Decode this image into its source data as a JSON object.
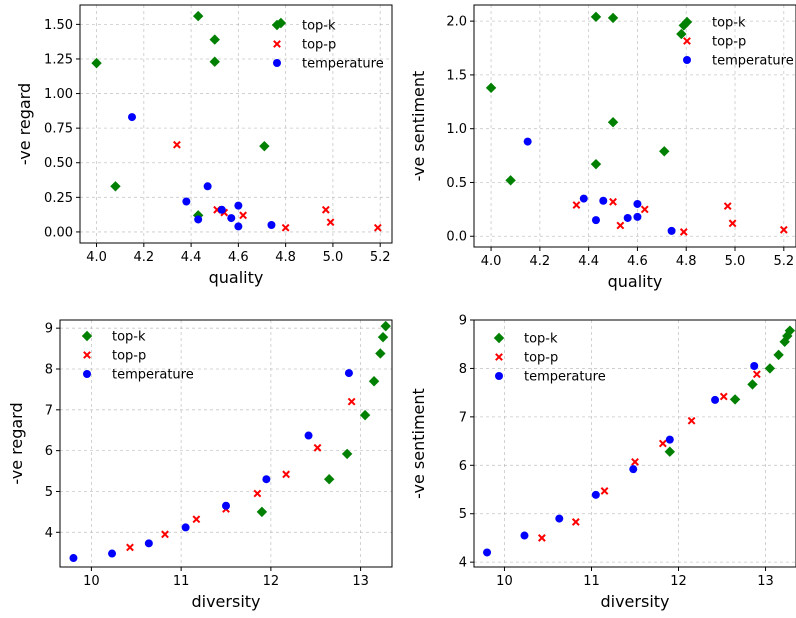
{
  "legend_labels": [
    "top-k",
    "top-p",
    "temperature"
  ],
  "colors": {
    "top-k": "#008000",
    "top-p": "#ff0000",
    "temperature": "#0000ff"
  },
  "chart_data": [
    {
      "type": "scatter",
      "xlabel": "quality",
      "ylabel": "-ve regard",
      "xlim": [
        3.93,
        5.25
      ],
      "ylim": [
        -0.08,
        1.64
      ],
      "xticks": [
        "4.0",
        "4.2",
        "4.4",
        "4.6",
        "4.8",
        "5.0",
        "5.2"
      ],
      "yticks": [
        "0.00",
        "0.25",
        "0.50",
        "0.75",
        "1.00",
        "1.25",
        "1.50"
      ],
      "grid": true,
      "legend": "top-right",
      "series": [
        {
          "name": "top-k",
          "marker": "diamond",
          "points": [
            [
              4.0,
              1.22
            ],
            [
              4.08,
              0.33
            ],
            [
              4.43,
              1.56
            ],
            [
              4.43,
              0.12
            ],
            [
              4.5,
              1.39
            ],
            [
              4.5,
              1.23
            ],
            [
              4.71,
              0.62
            ],
            [
              4.78,
              1.51
            ]
          ]
        },
        {
          "name": "top-p",
          "marker": "x",
          "points": [
            [
              4.34,
              0.63
            ],
            [
              4.51,
              0.16
            ],
            [
              4.54,
              0.14
            ],
            [
              4.62,
              0.12
            ],
            [
              4.8,
              0.03
            ],
            [
              4.97,
              0.16
            ],
            [
              4.99,
              0.07
            ],
            [
              5.19,
              0.03
            ]
          ]
        },
        {
          "name": "temperature",
          "marker": "circle",
          "points": [
            [
              4.15,
              0.83
            ],
            [
              4.38,
              0.22
            ],
            [
              4.43,
              0.09
            ],
            [
              4.47,
              0.33
            ],
            [
              4.53,
              0.16
            ],
            [
              4.57,
              0.1
            ],
            [
              4.6,
              0.04
            ],
            [
              4.6,
              0.19
            ],
            [
              4.74,
              0.05
            ]
          ]
        }
      ]
    },
    {
      "type": "scatter",
      "xlabel": "quality",
      "ylabel": "-ve sentiment",
      "xlim": [
        3.93,
        5.25
      ],
      "ylim": [
        -0.1,
        2.15
      ],
      "xticks": [
        "4.0",
        "4.2",
        "4.4",
        "4.6",
        "4.8",
        "5.0",
        "5.2"
      ],
      "yticks": [
        "0.0",
        "0.5",
        "1.0",
        "1.5",
        "2.0"
      ],
      "grid": true,
      "legend": "top-right",
      "series": [
        {
          "name": "top-k",
          "marker": "diamond",
          "points": [
            [
              4.0,
              1.38
            ],
            [
              4.08,
              0.52
            ],
            [
              4.43,
              2.04
            ],
            [
              4.43,
              0.67
            ],
            [
              4.5,
              2.03
            ],
            [
              4.5,
              1.06
            ],
            [
              4.71,
              0.79
            ],
            [
              4.78,
              1.88
            ],
            [
              4.79,
              1.96
            ]
          ]
        },
        {
          "name": "top-p",
          "marker": "x",
          "points": [
            [
              4.35,
              0.29
            ],
            [
              4.5,
              0.32
            ],
            [
              4.53,
              0.1
            ],
            [
              4.63,
              0.25
            ],
            [
              4.79,
              0.04
            ],
            [
              4.97,
              0.28
            ],
            [
              4.99,
              0.12
            ],
            [
              5.2,
              0.06
            ]
          ]
        },
        {
          "name": "temperature",
          "marker": "circle",
          "points": [
            [
              4.15,
              0.88
            ],
            [
              4.38,
              0.35
            ],
            [
              4.43,
              0.15
            ],
            [
              4.46,
              0.33
            ],
            [
              4.56,
              0.17
            ],
            [
              4.6,
              0.18
            ],
            [
              4.6,
              0.3
            ],
            [
              4.74,
              0.05
            ]
          ]
        }
      ]
    },
    {
      "type": "scatter",
      "xlabel": "diversity",
      "ylabel": "-ve regard",
      "xlim": [
        9.65,
        13.35
      ],
      "ylim": [
        3.15,
        9.2
      ],
      "xticks": [
        "10",
        "11",
        "12",
        "13"
      ],
      "yticks": [
        "4",
        "5",
        "6",
        "7",
        "8",
        "9"
      ],
      "grid": true,
      "legend": "top-left",
      "series": [
        {
          "name": "top-k",
          "marker": "diamond",
          "points": [
            [
              11.9,
              4.5
            ],
            [
              12.65,
              5.3
            ],
            [
              12.85,
              5.92
            ],
            [
              13.05,
              6.87
            ],
            [
              13.15,
              7.7
            ],
            [
              13.22,
              8.38
            ],
            [
              13.25,
              8.78
            ],
            [
              13.28,
              9.05
            ]
          ]
        },
        {
          "name": "top-p",
          "marker": "x",
          "points": [
            [
              10.43,
              3.63
            ],
            [
              10.82,
              3.95
            ],
            [
              11.17,
              4.32
            ],
            [
              11.5,
              4.57
            ],
            [
              11.85,
              4.95
            ],
            [
              12.17,
              5.42
            ],
            [
              12.52,
              6.07
            ],
            [
              12.9,
              7.2
            ]
          ]
        },
        {
          "name": "temperature",
          "marker": "circle",
          "points": [
            [
              9.8,
              3.37
            ],
            [
              10.23,
              3.48
            ],
            [
              10.64,
              3.73
            ],
            [
              11.05,
              4.12
            ],
            [
              11.5,
              4.65
            ],
            [
              11.95,
              5.3
            ],
            [
              12.42,
              6.37
            ],
            [
              12.87,
              7.9
            ]
          ]
        }
      ]
    },
    {
      "type": "scatter",
      "xlabel": "diversity",
      "ylabel": "-ve sentiment",
      "xlim": [
        9.65,
        13.35
      ],
      "ylim": [
        3.9,
        9.0
      ],
      "xticks": [
        "10",
        "11",
        "12",
        "13"
      ],
      "yticks": [
        "4",
        "5",
        "6",
        "7",
        "8",
        "9"
      ],
      "grid": true,
      "legend": "top-left",
      "series": [
        {
          "name": "top-k",
          "marker": "diamond",
          "points": [
            [
              11.9,
              6.28
            ],
            [
              12.65,
              7.36
            ],
            [
              12.85,
              7.67
            ],
            [
              13.05,
              8.0
            ],
            [
              13.15,
              8.28
            ],
            [
              13.22,
              8.55
            ],
            [
              13.25,
              8.67
            ],
            [
              13.28,
              8.78
            ]
          ]
        },
        {
          "name": "top-p",
          "marker": "x",
          "points": [
            [
              10.43,
              4.5
            ],
            [
              10.82,
              4.83
            ],
            [
              11.15,
              5.47
            ],
            [
              11.5,
              6.07
            ],
            [
              11.82,
              6.45
            ],
            [
              12.15,
              6.92
            ],
            [
              12.52,
              7.42
            ],
            [
              12.9,
              7.88
            ]
          ]
        },
        {
          "name": "temperature",
          "marker": "circle",
          "points": [
            [
              9.8,
              4.2
            ],
            [
              10.23,
              4.55
            ],
            [
              10.63,
              4.9
            ],
            [
              11.05,
              5.39
            ],
            [
              11.48,
              5.92
            ],
            [
              11.9,
              6.53
            ],
            [
              12.42,
              7.35
            ],
            [
              12.87,
              8.05
            ]
          ]
        }
      ]
    }
  ]
}
